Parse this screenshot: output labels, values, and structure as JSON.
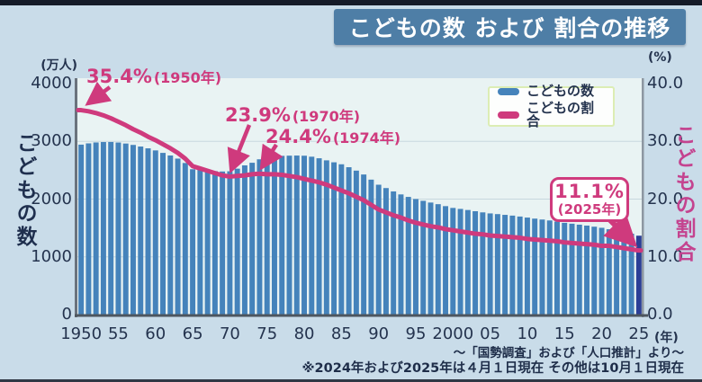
{
  "header": {
    "title": "こどもの数 および 割合の推移"
  },
  "footer": {
    "source": "〜「国勢調査」および「人口推計」より〜",
    "note": "※2024年および2025年は４月１日現在 その他は10月１日現在"
  },
  "chart_data": {
    "type": "bar+line",
    "title": "こどもの数 および 割合の推移",
    "left_axis": {
      "unit_label": "(万人)",
      "axis_title": "こどもの数",
      "min": 0,
      "max": 4000,
      "ticks": [
        "4000",
        "3000",
        "2000",
        "1000",
        "0"
      ]
    },
    "right_axis": {
      "unit_label": "(%)",
      "axis_title": "こどもの割合",
      "min": 0,
      "max": 40,
      "ticks": [
        "40.0",
        "30.0",
        "20.0",
        "10.0",
        "0.0"
      ]
    },
    "x_axis": {
      "suffix_label": "(年)",
      "tick_labels": [
        "1950",
        "55",
        "60",
        "65",
        "70",
        "75",
        "80",
        "85",
        "90",
        "95",
        "2000",
        "05",
        "10",
        "15",
        "20",
        "25"
      ],
      "tick_years": [
        1950,
        1955,
        1960,
        1965,
        1970,
        1975,
        1980,
        1985,
        1990,
        1995,
        2000,
        2005,
        2010,
        2015,
        2020,
        2025
      ]
    },
    "legend": {
      "items": [
        {
          "label": "こどもの数",
          "color": "#4583bb"
        },
        {
          "label": "こどもの割合",
          "color": "#cf3a7d"
        }
      ]
    },
    "colors": {
      "bar": "#4583bb",
      "bar_highlight": "#2c3f96",
      "line": "#cf3a7d"
    },
    "years": [
      1950,
      1951,
      1952,
      1953,
      1954,
      1955,
      1956,
      1957,
      1958,
      1959,
      1960,
      1961,
      1962,
      1963,
      1964,
      1965,
      1966,
      1967,
      1968,
      1969,
      1970,
      1971,
      1972,
      1973,
      1974,
      1975,
      1976,
      1977,
      1978,
      1979,
      1980,
      1981,
      1982,
      1983,
      1984,
      1985,
      1986,
      1987,
      1988,
      1989,
      1990,
      1991,
      1992,
      1993,
      1994,
      1995,
      1996,
      1997,
      1998,
      1999,
      2000,
      2001,
      2002,
      2003,
      2004,
      2005,
      2006,
      2007,
      2008,
      2009,
      2010,
      2011,
      2012,
      2013,
      2014,
      2015,
      2016,
      2017,
      2018,
      2019,
      2020,
      2021,
      2022,
      2023,
      2024,
      2025
    ],
    "series": [
      {
        "name": "こどもの数",
        "type": "bar",
        "unit": "万人",
        "values": [
          2943,
          2965,
          2981,
          2988,
          2989,
          2980,
          2962,
          2938,
          2910,
          2879,
          2843,
          2800,
          2755,
          2701,
          2625,
          2517,
          2512,
          2497,
          2484,
          2478,
          2482,
          2527,
          2584,
          2629,
          2689,
          2722,
          2740,
          2749,
          2752,
          2754,
          2751,
          2734,
          2707,
          2671,
          2637,
          2603,
          2552,
          2493,
          2426,
          2337,
          2249,
          2191,
          2133,
          2081,
          2038,
          2001,
          1970,
          1940,
          1912,
          1878,
          1847,
          1830,
          1811,
          1790,
          1770,
          1752,
          1740,
          1727,
          1714,
          1698,
          1680,
          1662,
          1646,
          1630,
          1610,
          1589,
          1574,
          1557,
          1541,
          1522,
          1503,
          1478,
          1450,
          1417,
          1401,
          1366
        ]
      },
      {
        "name": "こどもの割合",
        "type": "line",
        "unit": "%",
        "values": [
          35.4,
          35.2,
          34.9,
          34.5,
          34.0,
          33.4,
          32.8,
          32.1,
          31.5,
          30.8,
          30.2,
          29.5,
          28.8,
          28.0,
          27.0,
          25.7,
          25.3,
          24.9,
          24.5,
          24.1,
          23.9,
          24.0,
          24.1,
          24.3,
          24.4,
          24.3,
          24.3,
          24.2,
          24.0,
          23.8,
          23.5,
          23.2,
          22.9,
          22.5,
          22.0,
          21.5,
          21.0,
          20.4,
          19.8,
          19.0,
          18.2,
          17.7,
          17.2,
          16.8,
          16.3,
          15.9,
          15.6,
          15.3,
          15.1,
          14.8,
          14.6,
          14.4,
          14.2,
          14.0,
          13.9,
          13.7,
          13.6,
          13.5,
          13.4,
          13.3,
          13.1,
          13.0,
          12.9,
          12.8,
          12.7,
          12.5,
          12.4,
          12.3,
          12.2,
          12.1,
          11.9,
          11.9,
          11.7,
          11.5,
          11.3,
          11.1
        ]
      }
    ],
    "annotations": [
      {
        "value": "35.4%",
        "year_label": "(1950年)",
        "year": 1950,
        "pct": 35.4
      },
      {
        "value": "23.9%",
        "year_label": "(1970年)",
        "year": 1970,
        "pct": 23.9
      },
      {
        "value": "24.4%",
        "year_label": "(1974年)",
        "year": 1974,
        "pct": 24.4
      },
      {
        "value": "11.1%",
        "year_label": "(2025年)",
        "year": 2025,
        "pct": 11.1
      }
    ]
  }
}
